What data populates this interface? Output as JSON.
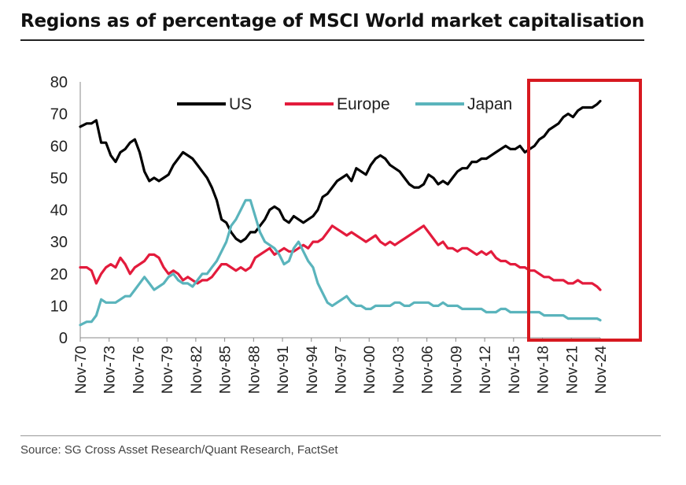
{
  "title": "Regions as of percentage of MSCI World market capitalisation",
  "source": "Source: SG Cross Asset Research/Quant Research, FactSet",
  "chart_data": {
    "type": "line",
    "title": "Regions as of percentage of MSCI World market capitalisation",
    "xlabel": "",
    "ylabel": "",
    "ylim": [
      0,
      80
    ],
    "yticks": [
      0,
      10,
      20,
      30,
      40,
      50,
      60,
      70,
      80
    ],
    "xlim": [
      1970.83,
      2024.83
    ],
    "xticks": [
      "Nov-70",
      "Nov-73",
      "Nov-76",
      "Nov-79",
      "Nov-82",
      "Nov-85",
      "Nov-88",
      "Nov-91",
      "Nov-94",
      "Nov-97",
      "Nov-00",
      "Nov-03",
      "Nov-06",
      "Nov-09",
      "Nov-12",
      "Nov-15",
      "Nov-18",
      "Nov-21",
      "Nov-24"
    ],
    "legend": "top",
    "highlight": {
      "x_from": 2016.6,
      "x_to": 2025.2,
      "color": "#d71920"
    },
    "series": [
      {
        "name": "US",
        "color": "#000000",
        "x": [
          1970.83,
          1971.5,
          1972.0,
          1972.5,
          1973.0,
          1973.5,
          1974.0,
          1974.5,
          1975.0,
          1975.5,
          1976.0,
          1976.5,
          1977.0,
          1977.5,
          1978.0,
          1978.5,
          1979.0,
          1979.5,
          1980.0,
          1980.5,
          1981.0,
          1981.5,
          1982.0,
          1982.5,
          1983.0,
          1983.5,
          1984.0,
          1984.5,
          1985.0,
          1985.5,
          1986.0,
          1986.5,
          1987.0,
          1987.5,
          1988.0,
          1988.5,
          1989.0,
          1989.5,
          1990.0,
          1990.5,
          1991.0,
          1991.5,
          1992.0,
          1992.5,
          1993.0,
          1993.5,
          1994.0,
          1994.5,
          1995.0,
          1995.5,
          1996.0,
          1996.5,
          1997.0,
          1997.5,
          1998.0,
          1998.5,
          1999.0,
          1999.5,
          2000.0,
          2000.5,
          2001.0,
          2001.5,
          2002.0,
          2002.5,
          2003.0,
          2003.5,
          2004.0,
          2004.5,
          2005.0,
          2005.5,
          2006.0,
          2006.5,
          2007.0,
          2007.5,
          2008.0,
          2008.5,
          2009.0,
          2009.5,
          2010.0,
          2010.5,
          2011.0,
          2011.5,
          2012.0,
          2012.5,
          2013.0,
          2013.5,
          2014.0,
          2014.5,
          2015.0,
          2015.5,
          2016.0,
          2016.5,
          2017.0,
          2017.5,
          2018.0,
          2018.5,
          2019.0,
          2019.5,
          2020.0,
          2020.5,
          2021.0,
          2021.5,
          2022.0,
          2022.5,
          2023.0,
          2023.5,
          2024.0,
          2024.5,
          2024.83
        ],
        "values": [
          66,
          67,
          67,
          68,
          61,
          61,
          57,
          55,
          58,
          59,
          61,
          62,
          58,
          52,
          49,
          50,
          49,
          50,
          51,
          54,
          56,
          58,
          57,
          56,
          54,
          52,
          50,
          47,
          43,
          37,
          36,
          33,
          31,
          30,
          31,
          33,
          33,
          35,
          37,
          40,
          41,
          40,
          37,
          36,
          38,
          37,
          36,
          37,
          38,
          40,
          44,
          45,
          47,
          49,
          50,
          51,
          49,
          53,
          52,
          51,
          54,
          56,
          57,
          56,
          54,
          53,
          52,
          50,
          48,
          47,
          47,
          48,
          51,
          50,
          48,
          49,
          48,
          50,
          52,
          53,
          53,
          55,
          55,
          56,
          56,
          57,
          58,
          59,
          60,
          59,
          59,
          60,
          58,
          59,
          60,
          62,
          63,
          65,
          66,
          67,
          69,
          70,
          69,
          71,
          72,
          72,
          72,
          73,
          74
        ]
      },
      {
        "name": "Europe",
        "color": "#e31b3c",
        "x": [
          1970.83,
          1971.5,
          1972.0,
          1972.5,
          1973.0,
          1973.5,
          1974.0,
          1974.5,
          1975.0,
          1975.5,
          1976.0,
          1976.5,
          1977.0,
          1977.5,
          1978.0,
          1978.5,
          1979.0,
          1979.5,
          1980.0,
          1980.5,
          1981.0,
          1981.5,
          1982.0,
          1982.5,
          1983.0,
          1983.5,
          1984.0,
          1984.5,
          1985.0,
          1985.5,
          1986.0,
          1986.5,
          1987.0,
          1987.5,
          1988.0,
          1988.5,
          1989.0,
          1989.5,
          1990.0,
          1990.5,
          1991.0,
          1991.5,
          1992.0,
          1992.5,
          1993.0,
          1993.5,
          1994.0,
          1994.5,
          1995.0,
          1995.5,
          1996.0,
          1996.5,
          1997.0,
          1997.5,
          1998.0,
          1998.5,
          1999.0,
          1999.5,
          2000.0,
          2000.5,
          2001.0,
          2001.5,
          2002.0,
          2002.5,
          2003.0,
          2003.5,
          2004.0,
          2004.5,
          2005.0,
          2005.5,
          2006.0,
          2006.5,
          2007.0,
          2007.5,
          2008.0,
          2008.5,
          2009.0,
          2009.5,
          2010.0,
          2010.5,
          2011.0,
          2011.5,
          2012.0,
          2012.5,
          2013.0,
          2013.5,
          2014.0,
          2014.5,
          2015.0,
          2015.5,
          2016.0,
          2016.5,
          2017.0,
          2017.5,
          2018.0,
          2018.5,
          2019.0,
          2019.5,
          2020.0,
          2020.5,
          2021.0,
          2021.5,
          2022.0,
          2022.5,
          2023.0,
          2023.5,
          2024.0,
          2024.5,
          2024.83
        ],
        "values": [
          22,
          22,
          21,
          17,
          20,
          22,
          23,
          22,
          25,
          23,
          20,
          22,
          23,
          24,
          26,
          26,
          25,
          22,
          20,
          21,
          20,
          18,
          19,
          18,
          17,
          18,
          18,
          19,
          21,
          23,
          23,
          22,
          21,
          22,
          21,
          22,
          25,
          26,
          27,
          28,
          26,
          27,
          28,
          27,
          27,
          28,
          29,
          28,
          30,
          30,
          31,
          33,
          35,
          34,
          33,
          32,
          33,
          32,
          31,
          30,
          31,
          32,
          30,
          29,
          30,
          29,
          30,
          31,
          32,
          33,
          34,
          35,
          33,
          31,
          29,
          30,
          28,
          28,
          27,
          28,
          28,
          27,
          26,
          27,
          26,
          27,
          25,
          24,
          24,
          23,
          23,
          22,
          22,
          21,
          21,
          20,
          19,
          19,
          18,
          18,
          18,
          17,
          17,
          18,
          17,
          17,
          17,
          16,
          15
        ]
      },
      {
        "name": "Japan",
        "color": "#5ab4bc",
        "x": [
          1970.83,
          1971.5,
          1972.0,
          1972.5,
          1973.0,
          1973.5,
          1974.0,
          1974.5,
          1975.0,
          1975.5,
          1976.0,
          1976.5,
          1977.0,
          1977.5,
          1978.0,
          1978.5,
          1979.0,
          1979.5,
          1980.0,
          1980.5,
          1981.0,
          1981.5,
          1982.0,
          1982.5,
          1983.0,
          1983.5,
          1984.0,
          1984.5,
          1985.0,
          1985.5,
          1986.0,
          1986.5,
          1987.0,
          1987.5,
          1988.0,
          1988.5,
          1989.0,
          1989.5,
          1990.0,
          1990.5,
          1991.0,
          1991.5,
          1992.0,
          1992.5,
          1993.0,
          1993.5,
          1994.0,
          1994.5,
          1995.0,
          1995.5,
          1996.0,
          1996.5,
          1997.0,
          1997.5,
          1998.0,
          1998.5,
          1999.0,
          1999.5,
          2000.0,
          2000.5,
          2001.0,
          2001.5,
          2002.0,
          2002.5,
          2003.0,
          2003.5,
          2004.0,
          2004.5,
          2005.0,
          2005.5,
          2006.0,
          2006.5,
          2007.0,
          2007.5,
          2008.0,
          2008.5,
          2009.0,
          2009.5,
          2010.0,
          2010.5,
          2011.0,
          2011.5,
          2012.0,
          2012.5,
          2013.0,
          2013.5,
          2014.0,
          2014.5,
          2015.0,
          2015.5,
          2016.0,
          2016.5,
          2017.0,
          2017.5,
          2018.0,
          2018.5,
          2019.0,
          2019.5,
          2020.0,
          2020.5,
          2021.0,
          2021.5,
          2022.0,
          2022.5,
          2023.0,
          2023.5,
          2024.0,
          2024.5,
          2024.83
        ],
        "values": [
          4,
          5,
          5,
          7,
          12,
          11,
          11,
          11,
          12,
          13,
          13,
          15,
          17,
          19,
          17,
          15,
          16,
          17,
          19,
          20,
          18,
          17,
          17,
          16,
          18,
          20,
          20,
          22,
          24,
          27,
          30,
          35,
          37,
          40,
          43,
          43,
          38,
          33,
          30,
          29,
          28,
          26,
          23,
          24,
          28,
          30,
          27,
          24,
          22,
          17,
          14,
          11,
          10,
          11,
          12,
          13,
          11,
          10,
          10,
          9,
          9,
          10,
          10,
          10,
          10,
          11,
          11,
          10,
          10,
          11,
          11,
          11,
          11,
          10,
          10,
          11,
          10,
          10,
          10,
          9,
          9,
          9,
          9,
          9,
          8,
          8,
          8,
          9,
          9,
          8,
          8,
          8,
          8,
          8,
          8,
          8,
          7,
          7,
          7,
          7,
          7,
          6,
          6,
          6,
          6,
          6,
          6,
          6,
          5.5
        ]
      }
    ]
  }
}
